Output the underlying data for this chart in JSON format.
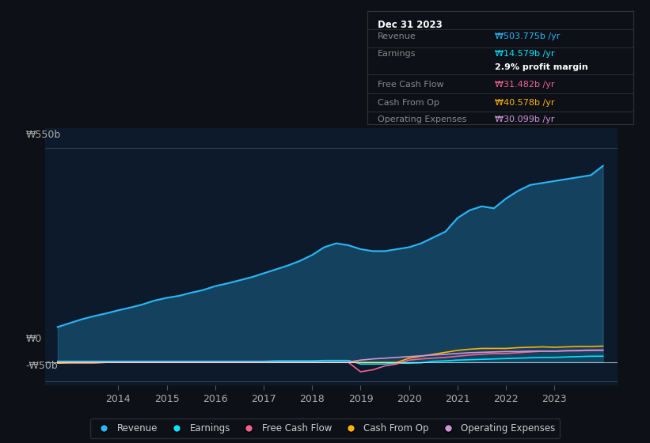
{
  "bg_color": "#0d1117",
  "plot_bg_color": "#0d1a2b",
  "ylabel_top": "₩550b",
  "ylabel_zero": "₩0",
  "ylabel_neg": "-₩50b",
  "xlim_start": 2012.5,
  "xlim_end": 2024.3,
  "ylim_min": -60,
  "ylim_max": 600,
  "ytick_positions": [
    -50,
    0,
    550
  ],
  "xticks": [
    2014,
    2015,
    2016,
    2017,
    2018,
    2019,
    2020,
    2021,
    2022,
    2023
  ],
  "revenue_color": "#29b6f6",
  "earnings_color": "#00e5ff",
  "fcf_color": "#f06292",
  "cashfromop_color": "#ffb300",
  "opex_color": "#ce93d8",
  "info_box": {
    "date": "Dec 31 2023",
    "revenue_label": "Revenue",
    "revenue_value": "₩503.775b /yr",
    "revenue_color": "#29b6f6",
    "earnings_label": "Earnings",
    "earnings_value": "₩14.579b /yr",
    "earnings_color": "#00e5ff",
    "margin_text": "2.9% profit margin",
    "fcf_label": "Free Cash Flow",
    "fcf_value": "₩31.482b /yr",
    "fcf_color": "#f06292",
    "cashfromop_label": "Cash From Op",
    "cashfromop_value": "₩40.578b /yr",
    "cashfromop_color": "#ffb300",
    "opex_label": "Operating Expenses",
    "opex_value": "₩30.099b /yr",
    "opex_color": "#ce93d8"
  },
  "years": [
    2012.75,
    2013.0,
    2013.25,
    2013.5,
    2013.75,
    2014.0,
    2014.25,
    2014.5,
    2014.75,
    2015.0,
    2015.25,
    2015.5,
    2015.75,
    2016.0,
    2016.25,
    2016.5,
    2016.75,
    2017.0,
    2017.25,
    2017.5,
    2017.75,
    2018.0,
    2018.25,
    2018.5,
    2018.75,
    2019.0,
    2019.25,
    2019.5,
    2019.75,
    2020.0,
    2020.25,
    2020.5,
    2020.75,
    2021.0,
    2021.25,
    2021.5,
    2021.75,
    2022.0,
    2022.25,
    2022.5,
    2022.75,
    2023.0,
    2023.25,
    2023.5,
    2023.75,
    2024.0
  ],
  "revenue": [
    90,
    100,
    110,
    118,
    125,
    133,
    140,
    148,
    158,
    165,
    170,
    178,
    185,
    195,
    202,
    210,
    218,
    228,
    238,
    248,
    260,
    275,
    295,
    305,
    300,
    290,
    285,
    285,
    290,
    295,
    305,
    320,
    335,
    370,
    390,
    400,
    395,
    420,
    440,
    455,
    460,
    465,
    470,
    475,
    480,
    504
  ],
  "earnings": [
    2,
    2,
    2,
    2,
    2,
    2,
    2,
    2,
    2,
    2,
    2,
    2,
    2,
    2,
    2,
    2,
    2,
    2,
    3,
    3,
    3,
    3,
    4,
    4,
    4,
    -5,
    -5,
    -5,
    -3,
    -3,
    -2,
    2,
    3,
    5,
    6,
    7,
    8,
    9,
    10,
    11,
    12,
    12,
    13,
    14,
    15,
    15
  ],
  "fcf": [
    -2,
    -2,
    -2,
    -2,
    -1,
    -1,
    -1,
    -1,
    -1,
    -1,
    -1,
    -1,
    -1,
    -1,
    -1,
    -1,
    -1,
    -1,
    -1,
    -1,
    -1,
    -1,
    -1,
    -1,
    -1,
    -25,
    -20,
    -10,
    -5,
    5,
    8,
    10,
    12,
    15,
    18,
    20,
    22,
    22,
    24,
    26,
    28,
    28,
    29,
    30,
    31,
    31
  ],
  "cashfromop": [
    -3,
    -2,
    -2,
    -2,
    -1,
    -1,
    -1,
    -1,
    -1,
    -1,
    -1,
    -1,
    -1,
    -1,
    -1,
    -1,
    -1,
    -1,
    -1,
    -1,
    -1,
    -1,
    -1,
    -1,
    -1,
    -1,
    -1,
    -1,
    -1,
    10,
    15,
    20,
    25,
    30,
    33,
    35,
    35,
    35,
    37,
    38,
    39,
    38,
    39,
    40,
    40,
    41
  ],
  "opex": [
    0,
    0,
    0,
    0,
    0,
    0,
    0,
    0,
    0,
    0,
    0,
    0,
    0,
    0,
    0,
    0,
    0,
    0,
    0,
    0,
    0,
    0,
    0,
    0,
    0,
    5,
    8,
    10,
    12,
    14,
    16,
    18,
    20,
    22,
    24,
    25,
    26,
    27,
    27,
    28,
    28,
    28,
    29,
    29,
    30,
    30
  ]
}
